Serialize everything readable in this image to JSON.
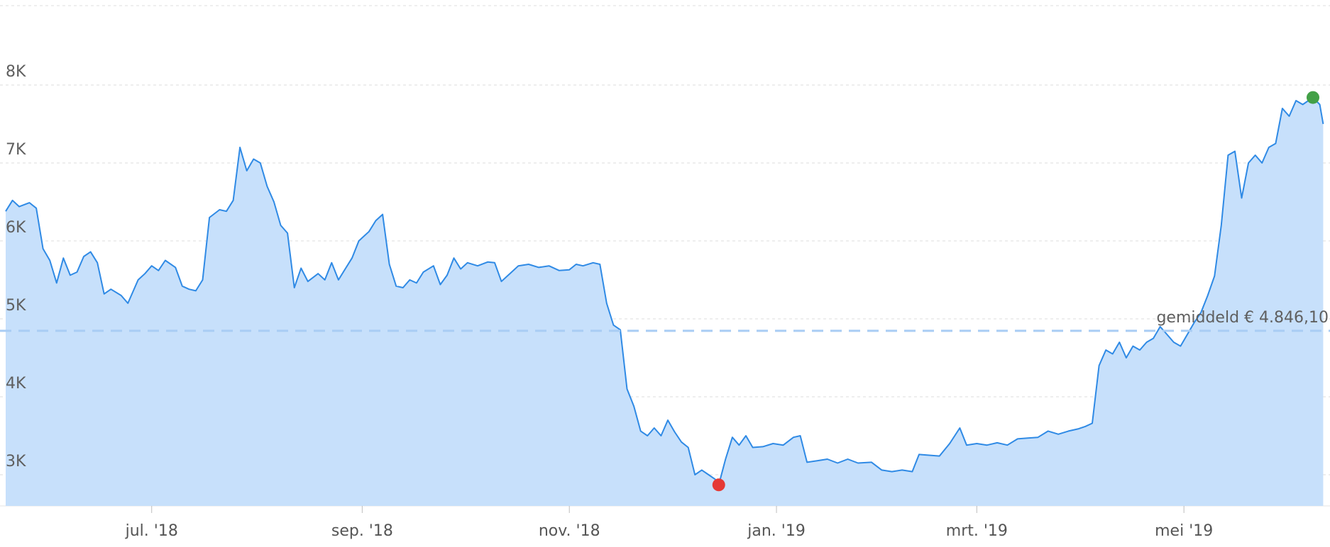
{
  "chart_data": {
    "type": "area",
    "y_ticks": [
      "3K",
      "4K",
      "5K",
      "6K",
      "7K",
      "8K"
    ],
    "y_tick_values": [
      3000,
      4000,
      5000,
      6000,
      7000,
      8000
    ],
    "ylim": [
      2590,
      8500
    ],
    "x_start": "2018-05-19",
    "x_end": "2019-06-11",
    "x_ticks": [
      {
        "date": "2018-07-01",
        "label": "jul. '18"
      },
      {
        "date": "2018-09-01",
        "label": "sep. '18"
      },
      {
        "date": "2018-11-01",
        "label": "nov. '18"
      },
      {
        "date": "2019-01-01",
        "label": "jan. '19"
      },
      {
        "date": "2019-03-01",
        "label": "mrt. '19"
      },
      {
        "date": "2019-05-01",
        "label": "mei '19"
      }
    ],
    "average": {
      "value": 4846.1,
      "label": "gemiddeld € 4.846,10"
    },
    "min_marker": {
      "date": "2018-12-15",
      "value": 2870,
      "color": "#e53935"
    },
    "max_marker": {
      "date": "2019-06-08",
      "value": 7840,
      "color": "#43a047"
    },
    "colors": {
      "line": "#2f8ae5",
      "fill": "#c7e0fb",
      "average": "#a9cdf4",
      "grid": "#dcdcdc"
    },
    "series": [
      {
        "points": [
          [
            "2018-05-19",
            6380
          ],
          [
            "2018-05-21",
            6520
          ],
          [
            "2018-05-23",
            6440
          ],
          [
            "2018-05-26",
            6490
          ],
          [
            "2018-05-28",
            6420
          ],
          [
            "2018-05-30",
            5900
          ],
          [
            "2018-06-01",
            5750
          ],
          [
            "2018-06-03",
            5460
          ],
          [
            "2018-06-05",
            5780
          ],
          [
            "2018-06-07",
            5560
          ],
          [
            "2018-06-09",
            5600
          ],
          [
            "2018-06-11",
            5800
          ],
          [
            "2018-06-13",
            5860
          ],
          [
            "2018-06-15",
            5720
          ],
          [
            "2018-06-17",
            5320
          ],
          [
            "2018-06-19",
            5380
          ],
          [
            "2018-06-22",
            5300
          ],
          [
            "2018-06-24",
            5200
          ],
          [
            "2018-06-27",
            5500
          ],
          [
            "2018-06-29",
            5580
          ],
          [
            "2018-07-01",
            5680
          ],
          [
            "2018-07-03",
            5620
          ],
          [
            "2018-07-05",
            5750
          ],
          [
            "2018-07-08",
            5660
          ],
          [
            "2018-07-10",
            5420
          ],
          [
            "2018-07-12",
            5380
          ],
          [
            "2018-07-14",
            5360
          ],
          [
            "2018-07-16",
            5500
          ],
          [
            "2018-07-18",
            6300
          ],
          [
            "2018-07-21",
            6400
          ],
          [
            "2018-07-23",
            6380
          ],
          [
            "2018-07-25",
            6520
          ],
          [
            "2018-07-27",
            7200
          ],
          [
            "2018-07-29",
            6900
          ],
          [
            "2018-07-31",
            7050
          ],
          [
            "2018-08-02",
            7000
          ],
          [
            "2018-08-04",
            6700
          ],
          [
            "2018-08-06",
            6500
          ],
          [
            "2018-08-08",
            6200
          ],
          [
            "2018-08-10",
            6100
          ],
          [
            "2018-08-12",
            5400
          ],
          [
            "2018-08-14",
            5650
          ],
          [
            "2018-08-16",
            5480
          ],
          [
            "2018-08-19",
            5580
          ],
          [
            "2018-08-21",
            5500
          ],
          [
            "2018-08-23",
            5720
          ],
          [
            "2018-08-25",
            5500
          ],
          [
            "2018-08-27",
            5640
          ],
          [
            "2018-08-29",
            5780
          ],
          [
            "2018-08-31",
            6000
          ],
          [
            "2018-09-03",
            6120
          ],
          [
            "2018-09-05",
            6260
          ],
          [
            "2018-09-07",
            6340
          ],
          [
            "2018-09-09",
            5700
          ],
          [
            "2018-09-11",
            5420
          ],
          [
            "2018-09-13",
            5400
          ],
          [
            "2018-09-15",
            5500
          ],
          [
            "2018-09-17",
            5460
          ],
          [
            "2018-09-19",
            5600
          ],
          [
            "2018-09-22",
            5680
          ],
          [
            "2018-09-24",
            5440
          ],
          [
            "2018-09-26",
            5560
          ],
          [
            "2018-09-28",
            5780
          ],
          [
            "2018-09-30",
            5640
          ],
          [
            "2018-10-02",
            5720
          ],
          [
            "2018-10-05",
            5680
          ],
          [
            "2018-10-08",
            5730
          ],
          [
            "2018-10-10",
            5720
          ],
          [
            "2018-10-12",
            5480
          ],
          [
            "2018-10-14",
            5560
          ],
          [
            "2018-10-17",
            5680
          ],
          [
            "2018-10-20",
            5700
          ],
          [
            "2018-10-23",
            5660
          ],
          [
            "2018-10-26",
            5680
          ],
          [
            "2018-10-29",
            5620
          ],
          [
            "2018-11-01",
            5630
          ],
          [
            "2018-11-03",
            5700
          ],
          [
            "2018-11-05",
            5680
          ],
          [
            "2018-11-08",
            5720
          ],
          [
            "2018-11-10",
            5700
          ],
          [
            "2018-11-12",
            5200
          ],
          [
            "2018-11-14",
            4920
          ],
          [
            "2018-11-16",
            4860
          ],
          [
            "2018-11-18",
            4100
          ],
          [
            "2018-11-20",
            3880
          ],
          [
            "2018-11-22",
            3560
          ],
          [
            "2018-11-24",
            3500
          ],
          [
            "2018-11-26",
            3600
          ],
          [
            "2018-11-28",
            3500
          ],
          [
            "2018-11-30",
            3700
          ],
          [
            "2018-12-02",
            3550
          ],
          [
            "2018-12-04",
            3420
          ],
          [
            "2018-12-06",
            3350
          ],
          [
            "2018-12-08",
            3000
          ],
          [
            "2018-12-10",
            3060
          ],
          [
            "2018-12-12",
            3000
          ],
          [
            "2018-12-14",
            2940
          ],
          [
            "2018-12-15",
            2870
          ],
          [
            "2018-12-17",
            3200
          ],
          [
            "2018-12-19",
            3480
          ],
          [
            "2018-12-21",
            3380
          ],
          [
            "2018-12-23",
            3500
          ],
          [
            "2018-12-25",
            3350
          ],
          [
            "2018-12-28",
            3360
          ],
          [
            "2018-12-31",
            3400
          ],
          [
            "2019-01-03",
            3380
          ],
          [
            "2019-01-06",
            3480
          ],
          [
            "2019-01-08",
            3500
          ],
          [
            "2019-01-10",
            3160
          ],
          [
            "2019-01-13",
            3180
          ],
          [
            "2019-01-16",
            3200
          ],
          [
            "2019-01-19",
            3150
          ],
          [
            "2019-01-22",
            3200
          ],
          [
            "2019-01-25",
            3150
          ],
          [
            "2019-01-29",
            3160
          ],
          [
            "2019-02-01",
            3060
          ],
          [
            "2019-02-04",
            3040
          ],
          [
            "2019-02-07",
            3060
          ],
          [
            "2019-02-10",
            3040
          ],
          [
            "2019-02-12",
            3260
          ],
          [
            "2019-02-15",
            3250
          ],
          [
            "2019-02-18",
            3240
          ],
          [
            "2019-02-21",
            3400
          ],
          [
            "2019-02-24",
            3600
          ],
          [
            "2019-02-26",
            3380
          ],
          [
            "2019-03-01",
            3400
          ],
          [
            "2019-03-04",
            3380
          ],
          [
            "2019-03-07",
            3410
          ],
          [
            "2019-03-10",
            3380
          ],
          [
            "2019-03-13",
            3460
          ],
          [
            "2019-03-16",
            3470
          ],
          [
            "2019-03-19",
            3480
          ],
          [
            "2019-03-22",
            3560
          ],
          [
            "2019-03-25",
            3520
          ],
          [
            "2019-03-28",
            3560
          ],
          [
            "2019-03-31",
            3590
          ],
          [
            "2019-04-02",
            3620
          ],
          [
            "2019-04-04",
            3660
          ],
          [
            "2019-04-06",
            4400
          ],
          [
            "2019-04-08",
            4600
          ],
          [
            "2019-04-10",
            4550
          ],
          [
            "2019-04-12",
            4700
          ],
          [
            "2019-04-14",
            4500
          ],
          [
            "2019-04-16",
            4650
          ],
          [
            "2019-04-18",
            4600
          ],
          [
            "2019-04-20",
            4700
          ],
          [
            "2019-04-22",
            4750
          ],
          [
            "2019-04-24",
            4900
          ],
          [
            "2019-04-26",
            4800
          ],
          [
            "2019-04-28",
            4700
          ],
          [
            "2019-04-30",
            4650
          ],
          [
            "2019-05-02",
            4800
          ],
          [
            "2019-05-04",
            4950
          ],
          [
            "2019-05-06",
            5080
          ],
          [
            "2019-05-08",
            5300
          ],
          [
            "2019-05-10",
            5550
          ],
          [
            "2019-05-12",
            6200
          ],
          [
            "2019-05-14",
            7100
          ],
          [
            "2019-05-16",
            7150
          ],
          [
            "2019-05-18",
            6550
          ],
          [
            "2019-05-20",
            7000
          ],
          [
            "2019-05-22",
            7100
          ],
          [
            "2019-05-24",
            7000
          ],
          [
            "2019-05-26",
            7200
          ],
          [
            "2019-05-28",
            7250
          ],
          [
            "2019-05-30",
            7700
          ],
          [
            "2019-06-01",
            7600
          ],
          [
            "2019-06-03",
            7800
          ],
          [
            "2019-06-05",
            7750
          ],
          [
            "2019-06-08",
            7840
          ],
          [
            "2019-06-10",
            7750
          ],
          [
            "2019-06-11",
            7500
          ]
        ]
      }
    ]
  }
}
